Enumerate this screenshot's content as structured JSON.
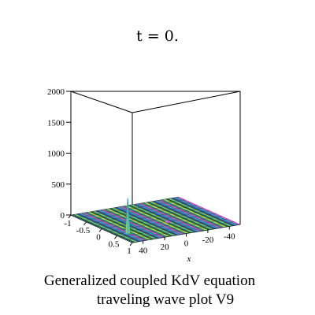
{
  "title": "t = 0.",
  "caption": [
    "Generalized coupled KdV equation",
    "traveling wave plot V9"
  ],
  "chart_data": {
    "type": "surface",
    "z_ticks": [
      "0",
      "500",
      "1000",
      "1500",
      "2000"
    ],
    "y_ticks": [
      "-1",
      "-0.5",
      "0",
      "0.5",
      "1"
    ],
    "x_ticks": [
      "40",
      "20",
      "0",
      "-20",
      "-40"
    ],
    "x_label": "x",
    "zlim": [
      0,
      2000
    ],
    "ylim": [
      -1,
      1
    ],
    "xlim": [
      -50,
      50
    ],
    "peak": {
      "height": 580,
      "y": 0.5,
      "x": 40
    },
    "box": true,
    "colormap": [
      "#1f6d5e",
      "#2e8f76",
      "#39a0c8",
      "#7bd36a",
      "#c9e24a",
      "#d45bd0",
      "#3a4bb0"
    ]
  }
}
